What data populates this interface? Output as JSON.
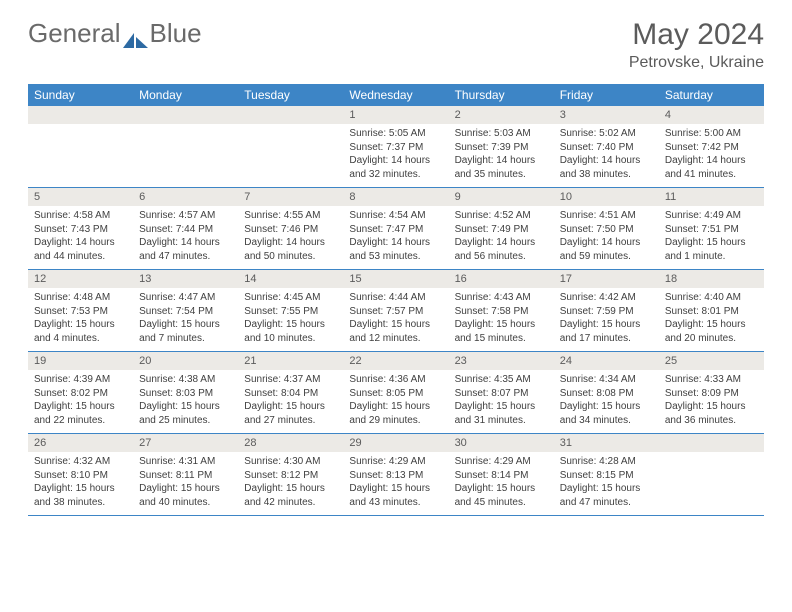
{
  "brand": {
    "part1": "General",
    "part2": "Blue"
  },
  "title": {
    "month": "May 2024",
    "location": "Petrovske, Ukraine"
  },
  "colors": {
    "header_bg": "#3d85c6",
    "daynum_bg": "#eceae6",
    "text": "#3f3f3f",
    "title_color": "#5b5b5b"
  },
  "dayNames": [
    "Sunday",
    "Monday",
    "Tuesday",
    "Wednesday",
    "Thursday",
    "Friday",
    "Saturday"
  ],
  "weeks": [
    [
      null,
      null,
      null,
      {
        "n": "1",
        "sr": "5:05 AM",
        "ss": "7:37 PM",
        "dl": "14 hours and 32 minutes."
      },
      {
        "n": "2",
        "sr": "5:03 AM",
        "ss": "7:39 PM",
        "dl": "14 hours and 35 minutes."
      },
      {
        "n": "3",
        "sr": "5:02 AM",
        "ss": "7:40 PM",
        "dl": "14 hours and 38 minutes."
      },
      {
        "n": "4",
        "sr": "5:00 AM",
        "ss": "7:42 PM",
        "dl": "14 hours and 41 minutes."
      }
    ],
    [
      {
        "n": "5",
        "sr": "4:58 AM",
        "ss": "7:43 PM",
        "dl": "14 hours and 44 minutes."
      },
      {
        "n": "6",
        "sr": "4:57 AM",
        "ss": "7:44 PM",
        "dl": "14 hours and 47 minutes."
      },
      {
        "n": "7",
        "sr": "4:55 AM",
        "ss": "7:46 PM",
        "dl": "14 hours and 50 minutes."
      },
      {
        "n": "8",
        "sr": "4:54 AM",
        "ss": "7:47 PM",
        "dl": "14 hours and 53 minutes."
      },
      {
        "n": "9",
        "sr": "4:52 AM",
        "ss": "7:49 PM",
        "dl": "14 hours and 56 minutes."
      },
      {
        "n": "10",
        "sr": "4:51 AM",
        "ss": "7:50 PM",
        "dl": "14 hours and 59 minutes."
      },
      {
        "n": "11",
        "sr": "4:49 AM",
        "ss": "7:51 PM",
        "dl": "15 hours and 1 minute."
      }
    ],
    [
      {
        "n": "12",
        "sr": "4:48 AM",
        "ss": "7:53 PM",
        "dl": "15 hours and 4 minutes."
      },
      {
        "n": "13",
        "sr": "4:47 AM",
        "ss": "7:54 PM",
        "dl": "15 hours and 7 minutes."
      },
      {
        "n": "14",
        "sr": "4:45 AM",
        "ss": "7:55 PM",
        "dl": "15 hours and 10 minutes."
      },
      {
        "n": "15",
        "sr": "4:44 AM",
        "ss": "7:57 PM",
        "dl": "15 hours and 12 minutes."
      },
      {
        "n": "16",
        "sr": "4:43 AM",
        "ss": "7:58 PM",
        "dl": "15 hours and 15 minutes."
      },
      {
        "n": "17",
        "sr": "4:42 AM",
        "ss": "7:59 PM",
        "dl": "15 hours and 17 minutes."
      },
      {
        "n": "18",
        "sr": "4:40 AM",
        "ss": "8:01 PM",
        "dl": "15 hours and 20 minutes."
      }
    ],
    [
      {
        "n": "19",
        "sr": "4:39 AM",
        "ss": "8:02 PM",
        "dl": "15 hours and 22 minutes."
      },
      {
        "n": "20",
        "sr": "4:38 AM",
        "ss": "8:03 PM",
        "dl": "15 hours and 25 minutes."
      },
      {
        "n": "21",
        "sr": "4:37 AM",
        "ss": "8:04 PM",
        "dl": "15 hours and 27 minutes."
      },
      {
        "n": "22",
        "sr": "4:36 AM",
        "ss": "8:05 PM",
        "dl": "15 hours and 29 minutes."
      },
      {
        "n": "23",
        "sr": "4:35 AM",
        "ss": "8:07 PM",
        "dl": "15 hours and 31 minutes."
      },
      {
        "n": "24",
        "sr": "4:34 AM",
        "ss": "8:08 PM",
        "dl": "15 hours and 34 minutes."
      },
      {
        "n": "25",
        "sr": "4:33 AM",
        "ss": "8:09 PM",
        "dl": "15 hours and 36 minutes."
      }
    ],
    [
      {
        "n": "26",
        "sr": "4:32 AM",
        "ss": "8:10 PM",
        "dl": "15 hours and 38 minutes."
      },
      {
        "n": "27",
        "sr": "4:31 AM",
        "ss": "8:11 PM",
        "dl": "15 hours and 40 minutes."
      },
      {
        "n": "28",
        "sr": "4:30 AM",
        "ss": "8:12 PM",
        "dl": "15 hours and 42 minutes."
      },
      {
        "n": "29",
        "sr": "4:29 AM",
        "ss": "8:13 PM",
        "dl": "15 hours and 43 minutes."
      },
      {
        "n": "30",
        "sr": "4:29 AM",
        "ss": "8:14 PM",
        "dl": "15 hours and 45 minutes."
      },
      {
        "n": "31",
        "sr": "4:28 AM",
        "ss": "8:15 PM",
        "dl": "15 hours and 47 minutes."
      },
      null
    ]
  ]
}
